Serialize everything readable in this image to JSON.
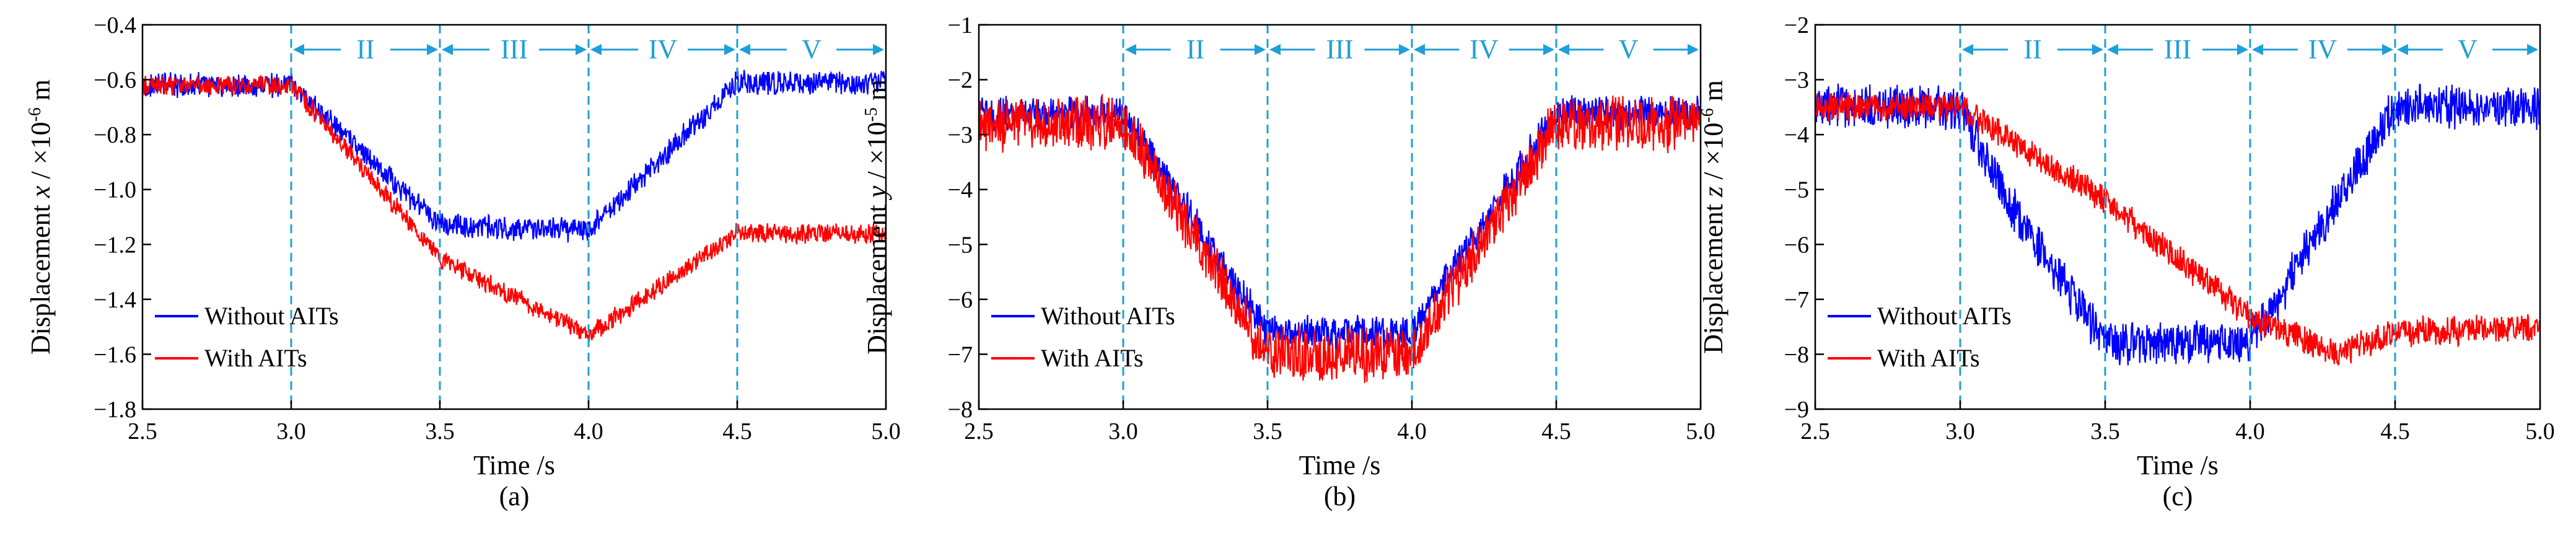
{
  "colors": {
    "without": "#0000ff",
    "with": "#ff0000",
    "phase": "#1e9fd8"
  },
  "chart_data": [
    {
      "type": "line",
      "panel_label": "(a)",
      "xlabel": "Time /s",
      "ylabel_pre": "Displacement ",
      "ylabel_var": "x",
      "ylabel_unit": " / ×10",
      "ylabel_exp": "-6",
      "ylabel_post": " m",
      "xlim": [
        2.5,
        5.0
      ],
      "ylim": [
        -1.8,
        -0.4
      ],
      "xticks": [
        2.5,
        3.0,
        3.5,
        4.0,
        4.5,
        5.0
      ],
      "xtick_labels": [
        "2.5",
        "3.0",
        "3.5",
        "4.0",
        "4.5",
        "5.0"
      ],
      "yticks": [
        -1.8,
        -1.6,
        -1.4,
        -1.2,
        -1.0,
        -0.8,
        -0.6,
        -0.4
      ],
      "ytick_labels": [
        "−1.8",
        "−1.6",
        "−1.4",
        "−1.2",
        "−1.0",
        "−0.8",
        "−0.6",
        "−0.4"
      ],
      "phases": [
        "II",
        "III",
        "IV",
        "V"
      ],
      "phase_bounds": [
        3.0,
        3.5,
        4.0,
        4.5,
        5.0
      ],
      "legend_position": "lower-left",
      "series": [
        {
          "name": "Without AITs",
          "color": "#0000ff",
          "noise": 0.05,
          "x": [
            2.5,
            3.0,
            3.5,
            4.0,
            4.5,
            5.0
          ],
          "y": [
            -0.62,
            -0.62,
            -1.13,
            -1.15,
            -0.61,
            -0.61
          ]
        },
        {
          "name": "With AITs",
          "color": "#ff0000",
          "noise": 0.04,
          "x": [
            2.5,
            3.0,
            3.5,
            4.0,
            4.5,
            5.0
          ],
          "y": [
            -0.62,
            -0.62,
            -1.25,
            -1.53,
            -1.16,
            -1.16
          ]
        }
      ]
    },
    {
      "type": "line",
      "panel_label": "(b)",
      "xlabel": "Time /s",
      "ylabel_pre": "Displacement ",
      "ylabel_var": "y",
      "ylabel_unit": " / ×10",
      "ylabel_exp": "-5",
      "ylabel_post": " m",
      "xlim": [
        2.5,
        5.0
      ],
      "ylim": [
        -8,
        -1
      ],
      "xticks": [
        2.5,
        3.0,
        3.5,
        4.0,
        4.5,
        5.0
      ],
      "xtick_labels": [
        "2.5",
        "3.0",
        "3.5",
        "4.0",
        "4.5",
        "5.0"
      ],
      "yticks": [
        -8,
        -7,
        -6,
        -5,
        -4,
        -3,
        -2,
        -1
      ],
      "ytick_labels": [
        "−8",
        "−7",
        "−6",
        "−5",
        "−4",
        "−3",
        "−2",
        "−1"
      ],
      "phases": [
        "II",
        "III",
        "IV",
        "V"
      ],
      "phase_bounds": [
        3.0,
        3.5,
        4.0,
        4.5,
        5.0
      ],
      "legend_position": "lower-left",
      "series": [
        {
          "name": "Without AITs",
          "color": "#0000ff",
          "noise": 0.35,
          "x": [
            2.5,
            3.0,
            3.5,
            4.0,
            4.5,
            5.0
          ],
          "y": [
            -2.6,
            -2.6,
            -6.6,
            -6.6,
            -2.6,
            -2.6
          ]
        },
        {
          "name": "With AITs",
          "color": "#ff0000",
          "noise": 0.55,
          "x": [
            2.5,
            3.0,
            3.5,
            4.0,
            4.5,
            5.0
          ],
          "y": [
            -2.8,
            -2.8,
            -7.0,
            -7.0,
            -2.8,
            -2.8
          ]
        }
      ]
    },
    {
      "type": "line",
      "panel_label": "(c)",
      "xlabel": "Time /s",
      "ylabel_pre": "Displacement ",
      "ylabel_var": "z",
      "ylabel_unit": " / ×10",
      "ylabel_exp": "-6",
      "ylabel_post": " m",
      "xlim": [
        2.5,
        5.0
      ],
      "ylim": [
        -9,
        -2
      ],
      "xticks": [
        2.5,
        3.0,
        3.5,
        4.0,
        4.5,
        5.0
      ],
      "xtick_labels": [
        "2.5",
        "3.0",
        "3.5",
        "4.0",
        "4.5",
        "5.0"
      ],
      "yticks": [
        -9,
        -8,
        -7,
        -6,
        -5,
        -4,
        -3,
        -2
      ],
      "ytick_labels": [
        "−9",
        "−8",
        "−7",
        "−6",
        "−5",
        "−4",
        "−3",
        "−2"
      ],
      "phases": [
        "II",
        "III",
        "IV",
        "V"
      ],
      "phase_bounds": [
        3.0,
        3.5,
        4.0,
        4.5,
        5.0
      ],
      "legend_position": "lower-left",
      "series": [
        {
          "name": "Without AITs",
          "color": "#0000ff",
          "noise": 0.45,
          "x": [
            2.5,
            3.0,
            3.2,
            3.5,
            4.0,
            4.5,
            5.0
          ],
          "y": [
            -3.5,
            -3.5,
            -5.5,
            -7.8,
            -7.8,
            -3.5,
            -3.5
          ]
        },
        {
          "name": "With AITs",
          "color": "#ff0000",
          "noise": 0.3,
          "x": [
            2.5,
            3.0,
            3.5,
            4.0,
            4.3,
            4.5,
            5.0
          ],
          "y": [
            -3.5,
            -3.5,
            -5.2,
            -7.3,
            -8.0,
            -7.6,
            -7.5
          ]
        }
      ]
    }
  ]
}
